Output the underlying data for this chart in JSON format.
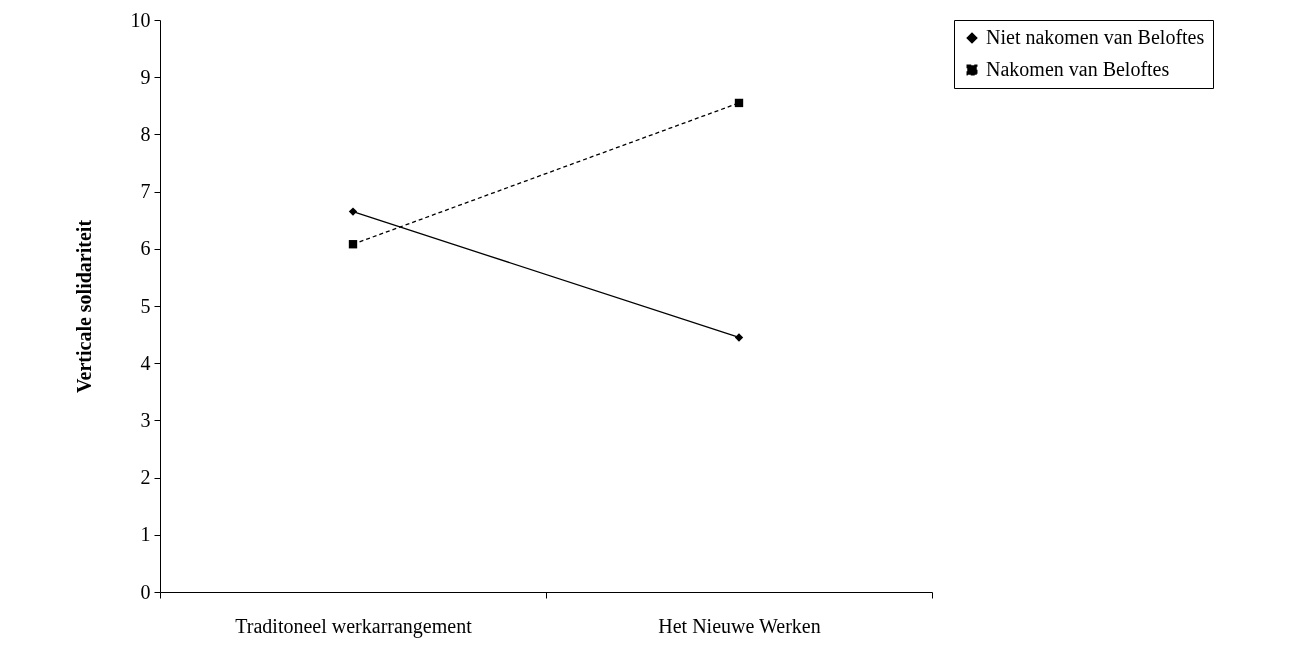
{
  "chart_data": {
    "type": "line",
    "ylabel": "Verticale solidariteit",
    "categories": [
      "Traditoneel werkarrangement",
      "Het Nieuwe Werken"
    ],
    "ylim": [
      0,
      10
    ],
    "yticks": [
      0,
      1,
      2,
      3,
      4,
      5,
      6,
      7,
      8,
      9,
      10
    ],
    "grid": false,
    "legend": "right",
    "series": [
      {
        "name": "Niet nakomen van Beloftes",
        "color": "#000000",
        "values": [
          6.65,
          4.45
        ],
        "marker": "diamond",
        "line_style": "solid"
      },
      {
        "name": "Nakomen van Beloftes",
        "color": "#000000",
        "values": [
          6.08,
          8.55
        ],
        "marker": "square",
        "line_style": "dashed"
      }
    ]
  }
}
